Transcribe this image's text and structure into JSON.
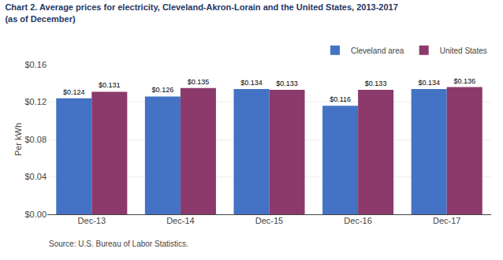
{
  "chart_data": {
    "type": "bar",
    "title": "Chart 2. Average prices for electricity, Cleveland-Akron-Lorain and the United States, 2013-2017",
    "subtitle": "(as of December)",
    "ylabel": "Per kWh",
    "annotations": [
      "Source: U.S. Bureau of Labor Statistics."
    ],
    "categories": [
      "Dec-13",
      "Dec-14",
      "Dec-15",
      "Dec-16",
      "Dec-17"
    ],
    "series": [
      {
        "name": "Cleveland area",
        "color": "#4472C4",
        "values": [
          0.124,
          0.126,
          0.134,
          0.116,
          0.134
        ],
        "value_labels": [
          "$0.124",
          "$0.126",
          "$0.134",
          "$0.116",
          "$0.134"
        ]
      },
      {
        "name": "United States",
        "color": "#8B3A6B",
        "values": [
          0.131,
          0.135,
          0.133,
          0.133,
          0.136
        ],
        "value_labels": [
          "$0.131",
          "$0.135",
          "$0.133",
          "$0.133",
          "$0.136"
        ]
      }
    ],
    "ylim": [
      0,
      0.16
    ],
    "yticks": [
      {
        "value": 0,
        "label": "$0.00"
      },
      {
        "value": 0.04,
        "label": "$0.04"
      },
      {
        "value": 0.08,
        "label": "$0.08"
      },
      {
        "value": 0.12,
        "label": "$0.12"
      },
      {
        "value": 0.16,
        "label": "$0.16"
      }
    ],
    "grid": true,
    "legend": "upper right",
    "data_labels": true
  }
}
